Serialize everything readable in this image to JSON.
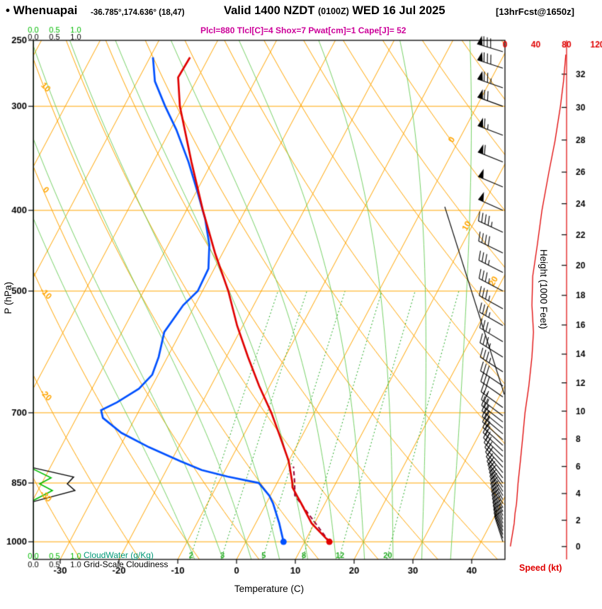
{
  "header": {
    "bullet": "•",
    "station": "Whenuapai",
    "coords": "-36.785°,174.636° (18,47)",
    "valid_prefix": "Valid 1400 NZDT",
    "valid_utc": "(0100Z)",
    "valid_date": "WED 16 Jul 2025",
    "forecast": "[13hrFcst@1650z]",
    "params": "Plcl=880 Tlcl[C]=4 Shox=7 Pwat[cm]=1 Cape[J]= 52"
  },
  "axes": {
    "pressure_label": "P (hPa)",
    "pressure_ticks": [
      250,
      300,
      400,
      500,
      700,
      850,
      1000
    ],
    "temp_label": "Temperature (C)",
    "temp_ticks": [
      -30,
      -20,
      -10,
      0,
      10,
      20,
      30,
      40
    ],
    "height_label": "Height (1000 Feet)",
    "height_ticks": [
      0,
      2,
      4,
      6,
      8,
      10,
      12,
      14,
      16,
      18,
      20,
      22,
      24,
      26,
      28,
      30,
      32
    ],
    "speed_label": "Speed (kt)",
    "speed_ticks": [
      0,
      40,
      80,
      120
    ],
    "scale_ticks": [
      "0.0",
      "0.5",
      "1.0"
    ],
    "cloudwater_label": "CloudWater (g/Kg)",
    "cloudiness_label": "Grid-Scale Cloudiness"
  },
  "chart_data": {
    "type": "skewt_log_p_sounding",
    "pressure_hpa_range": [
      250,
      1050
    ],
    "isobar_lines_hpa": [
      300,
      400,
      500,
      700,
      850,
      1000
    ],
    "skew_isotherms_c": {
      "min": -120,
      "max": 40,
      "step": 10
    },
    "dry_adiabats_c": {
      "min": -40,
      "max": 130,
      "step": 10
    },
    "moist_adiabats_c": [
      -10,
      -5,
      0,
      5,
      10,
      15,
      20,
      25,
      30,
      35
    ],
    "mixing_ratio_gkg": [
      2,
      3,
      5,
      8,
      12,
      20
    ],
    "isotherm_edge_labels": [
      0,
      10,
      20
    ],
    "adiabat_edge_labels": [
      10,
      0,
      -10,
      -20,
      -30
    ],
    "temperature_profile": [
      [
        1000,
        14.2
      ],
      [
        950,
        9.5
      ],
      [
        900,
        6.0
      ],
      [
        880,
        4.5
      ],
      [
        860,
        3.0
      ],
      [
        850,
        2.6
      ],
      [
        800,
        0.0
      ],
      [
        750,
        -3.5
      ],
      [
        700,
        -7.3
      ],
      [
        650,
        -11.8
      ],
      [
        600,
        -16.3
      ],
      [
        550,
        -21.0
      ],
      [
        500,
        -25.6
      ],
      [
        450,
        -31.3
      ],
      [
        400,
        -37.2
      ],
      [
        350,
        -43.5
      ],
      [
        300,
        -50.5
      ],
      [
        277,
        -53.4
      ],
      [
        262,
        -53.2
      ]
    ],
    "dewpoint_profile": [
      [
        1000,
        6.4
      ],
      [
        950,
        4.0
      ],
      [
        900,
        1.2
      ],
      [
        880,
        -0.2
      ],
      [
        850,
        -3.1
      ],
      [
        835,
        -9.0
      ],
      [
        820,
        -14.0
      ],
      [
        800,
        -18.5
      ],
      [
        770,
        -25.0
      ],
      [
        740,
        -31.0
      ],
      [
        710,
        -35.5
      ],
      [
        695,
        -36.5
      ],
      [
        680,
        -34.5
      ],
      [
        655,
        -32.0
      ],
      [
        630,
        -31.0
      ],
      [
        600,
        -31.5
      ],
      [
        560,
        -32.8
      ],
      [
        520,
        -32.0
      ],
      [
        500,
        -30.8
      ],
      [
        470,
        -31.0
      ],
      [
        440,
        -33.0
      ],
      [
        410,
        -36.0
      ],
      [
        380,
        -39.8
      ],
      [
        350,
        -44.0
      ],
      [
        320,
        -49.0
      ],
      [
        300,
        -53.0
      ],
      [
        280,
        -57.0
      ],
      [
        262,
        -59.5
      ]
    ],
    "parcel_path": [
      [
        1000,
        14.2
      ],
      [
        880,
        4.15
      ],
      [
        850,
        3.0
      ],
      [
        812,
        1.3
      ]
    ],
    "surface_dots": {
      "pressure_hpa": 1000,
      "temperature_c": 14.2,
      "dewpoint_c": 6.4
    },
    "wind_speed_profile_kt": [
      [
        1013,
        7
      ],
      [
        975,
        10
      ],
      [
        950,
        12
      ],
      [
        925,
        13
      ],
      [
        900,
        15
      ],
      [
        875,
        16
      ],
      [
        850,
        17
      ],
      [
        800,
        20
      ],
      [
        750,
        23
      ],
      [
        700,
        26
      ],
      [
        650,
        31
      ],
      [
        600,
        35
      ],
      [
        560,
        37
      ],
      [
        520,
        35
      ],
      [
        480,
        36
      ],
      [
        440,
        42
      ],
      [
        400,
        48
      ],
      [
        360,
        57
      ],
      [
        330,
        65
      ],
      [
        300,
        72
      ],
      [
        280,
        76
      ],
      [
        260,
        79
      ]
    ],
    "wind_barbs": [
      [
        1000,
        8,
        342
      ],
      [
        990,
        9,
        341
      ],
      [
        980,
        9,
        340
      ],
      [
        970,
        10,
        339
      ],
      [
        960,
        11,
        338
      ],
      [
        950,
        12,
        337
      ],
      [
        940,
        12,
        336
      ],
      [
        930,
        13,
        335
      ],
      [
        920,
        13,
        334
      ],
      [
        910,
        14,
        333
      ],
      [
        900,
        15,
        332
      ],
      [
        890,
        15,
        331
      ],
      [
        880,
        16,
        330
      ],
      [
        870,
        16,
        328
      ],
      [
        860,
        16,
        326
      ],
      [
        850,
        17,
        324
      ],
      [
        838,
        17,
        322
      ],
      [
        826,
        18,
        320
      ],
      [
        814,
        19,
        318
      ],
      [
        802,
        20,
        316
      ],
      [
        790,
        21,
        314
      ],
      [
        778,
        22,
        313
      ],
      [
        766,
        22,
        312
      ],
      [
        754,
        23,
        311
      ],
      [
        742,
        24,
        310
      ],
      [
        730,
        25,
        309
      ],
      [
        718,
        25,
        308
      ],
      [
        706,
        26,
        307
      ],
      [
        690,
        27,
        306
      ],
      [
        670,
        28,
        305
      ],
      [
        650,
        31,
        304
      ],
      [
        625,
        33,
        303
      ],
      [
        600,
        35,
        302
      ],
      [
        575,
        36,
        301
      ],
      [
        550,
        36,
        300
      ],
      [
        525,
        35,
        299
      ],
      [
        500,
        35,
        298
      ],
      [
        475,
        36,
        297
      ],
      [
        450,
        40,
        296
      ],
      [
        425,
        45,
        295
      ],
      [
        400,
        48,
        294
      ],
      [
        375,
        52,
        293
      ],
      [
        350,
        60,
        292
      ],
      [
        325,
        66,
        291
      ],
      [
        300,
        72,
        290
      ],
      [
        285,
        75,
        289
      ],
      [
        270,
        78,
        288
      ],
      [
        258,
        79,
        287
      ]
    ],
    "cloud_water_profile_gkg": [
      [
        1050,
        0
      ],
      [
        892,
        0
      ],
      [
        868,
        0.45
      ],
      [
        852,
        0.15
      ],
      [
        838,
        0.42
      ],
      [
        818,
        0
      ],
      [
        250,
        0
      ]
    ],
    "cloudiness_profile": [
      [
        1050,
        0
      ],
      [
        895,
        0
      ],
      [
        868,
        0.98
      ],
      [
        852,
        0.8
      ],
      [
        836,
        0.95
      ],
      [
        815,
        0
      ],
      [
        250,
        0
      ]
    ],
    "colors": {
      "grid_orange": "#ffa500",
      "mixing_green": "#22aa22",
      "moist_green": "#66cc55",
      "cloudwater_green": "#00bb00",
      "cloudwater_label_teal": "#009977",
      "temperature_red": "#e00000",
      "dewpoint_blue": "#0050ff",
      "parcel_maroon": "#990033",
      "speed_red": "#e00000",
      "barb_black": "#000000",
      "params_magenta": "#cc0099",
      "axis_black": "#000000"
    }
  }
}
